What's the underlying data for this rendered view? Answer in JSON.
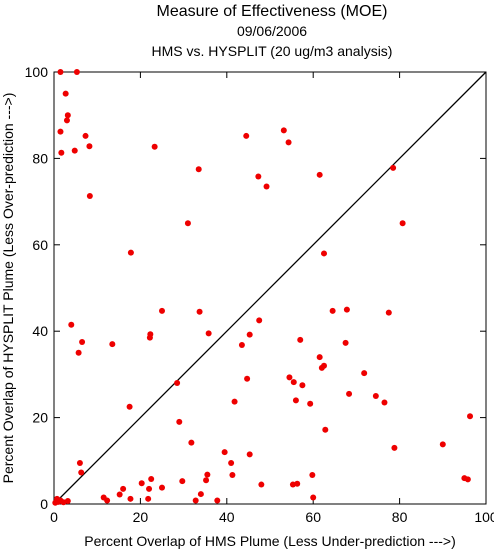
{
  "chart_data": {
    "type": "scatter",
    "title": "Measure of Effectiveness (MOE)",
    "subtitle": "09/06/2006",
    "subtitle2": "HMS vs. HYSPLIT  (20 ug/m3 analysis)",
    "xlabel": "Percent Overlap of HMS Plume (Less Under-prediction --->)",
    "ylabel": "Percent Overlap of HYSPLIT Plume (Less Over-prediction --->)",
    "xlim": [
      0,
      100
    ],
    "ylim": [
      0,
      100
    ],
    "xticks": [
      "0",
      "20",
      "40",
      "60",
      "80",
      "100"
    ],
    "yticks": [
      "0",
      "20",
      "40",
      "60",
      "80",
      "100"
    ],
    "grid": false,
    "reference_line": "y = x",
    "point_color": "#ee0000",
    "points": [
      [
        0.3,
        0.3
      ],
      [
        0.7,
        1.2
      ],
      [
        1.0,
        0.5
      ],
      [
        1.5,
        0.8
      ],
      [
        2.2,
        0.4
      ],
      [
        3.2,
        0.7
      ],
      [
        1.5,
        100
      ],
      [
        5.3,
        100
      ],
      [
        2.7,
        95
      ],
      [
        3.2,
        90
      ],
      [
        3.0,
        88.8
      ],
      [
        1.5,
        86.2
      ],
      [
        7.3,
        85.2
      ],
      [
        8.2,
        82.8
      ],
      [
        4.8,
        81.8
      ],
      [
        1.7,
        81.3
      ],
      [
        8.3,
        71.3
      ],
      [
        23.3,
        82.7
      ],
      [
        44.5,
        85.2
      ],
      [
        53.2,
        86.5
      ],
      [
        54.3,
        83.7
      ],
      [
        47.3,
        75.8
      ],
      [
        49.2,
        73.5
      ],
      [
        33.5,
        77.5
      ],
      [
        31.0,
        65.0
      ],
      [
        61.5,
        76.2
      ],
      [
        78.5,
        77.8
      ],
      [
        80.7,
        65.0
      ],
      [
        17.8,
        58.2
      ],
      [
        62.5,
        58.0
      ],
      [
        4.0,
        41.5
      ],
      [
        25.0,
        44.7
      ],
      [
        33.7,
        44.5
      ],
      [
        6.5,
        37.5
      ],
      [
        5.7,
        35.0
      ],
      [
        13.5,
        37.0
      ],
      [
        22.3,
        39.3
      ],
      [
        22.2,
        38.5
      ],
      [
        35.8,
        39.5
      ],
      [
        43.5,
        36.8
      ],
      [
        45.3,
        39.2
      ],
      [
        47.5,
        42.5
      ],
      [
        57.0,
        38.0
      ],
      [
        64.5,
        44.7
      ],
      [
        67.8,
        45.0
      ],
      [
        77.5,
        44.3
      ],
      [
        67.5,
        37.3
      ],
      [
        61.5,
        34.0
      ],
      [
        62.0,
        31.5
      ],
      [
        62.5,
        32.0
      ],
      [
        71.8,
        30.3
      ],
      [
        54.5,
        29.3
      ],
      [
        55.5,
        28.2
      ],
      [
        57.5,
        27.5
      ],
      [
        44.7,
        29.0
      ],
      [
        28.5,
        28.0
      ],
      [
        68.3,
        25.5
      ],
      [
        74.5,
        25.0
      ],
      [
        76.5,
        23.5
      ],
      [
        56.0,
        24.0
      ],
      [
        59.3,
        23.2
      ],
      [
        41.8,
        23.7
      ],
      [
        17.5,
        22.5
      ],
      [
        29.0,
        19.0
      ],
      [
        62.8,
        17.2
      ],
      [
        31.8,
        14.2
      ],
      [
        45.3,
        11.5
      ],
      [
        39.5,
        12.0
      ],
      [
        41.0,
        9.5
      ],
      [
        41.3,
        6.7
      ],
      [
        35.5,
        6.8
      ],
      [
        35.2,
        5.5
      ],
      [
        29.7,
        5.3
      ],
      [
        22.5,
        5.8
      ],
      [
        20.3,
        4.8
      ],
      [
        22.0,
        3.5
      ],
      [
        16.0,
        3.5
      ],
      [
        15.2,
        2.2
      ],
      [
        11.5,
        1.5
      ],
      [
        12.3,
        0.8
      ],
      [
        17.7,
        1.2
      ],
      [
        21.8,
        1.2
      ],
      [
        32.8,
        0.8
      ],
      [
        34.0,
        2.3
      ],
      [
        37.8,
        0.8
      ],
      [
        25.0,
        3.8
      ],
      [
        6.0,
        9.5
      ],
      [
        6.3,
        7.3
      ],
      [
        48.0,
        4.5
      ],
      [
        55.3,
        4.5
      ],
      [
        56.3,
        4.7
      ],
      [
        59.8,
        6.7
      ],
      [
        60.0,
        1.5
      ],
      [
        78.8,
        13.0
      ],
      [
        90.0,
        13.8
      ],
      [
        96.3,
        20.3
      ],
      [
        95.0,
        6.0
      ],
      [
        95.8,
        5.7
      ]
    ]
  }
}
